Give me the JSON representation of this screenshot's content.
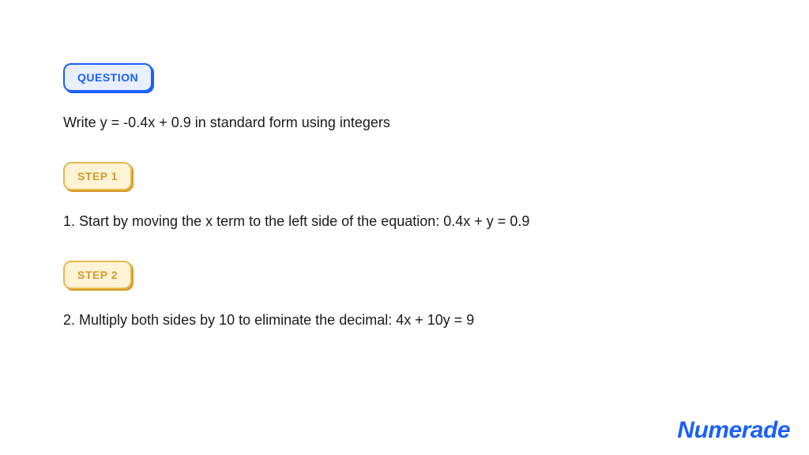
{
  "colors": {
    "accent_blue": "#1a5fff",
    "question_bg": "#e8f0ff",
    "step_bg": "#fff3d6",
    "step_border": "#e6b84f",
    "step_text": "#d4992b",
    "body_text": "#1a1a1a",
    "background": "#ffffff"
  },
  "typography": {
    "badge_fontsize": 14,
    "badge_weight": 700,
    "body_fontsize": 18,
    "logo_fontsize": 28
  },
  "sections": {
    "question": {
      "label": "QUESTION",
      "text": "Write y = -0.4x + 0.9 in standard form using integers"
    },
    "step1": {
      "label": "STEP 1",
      "text": "1. Start by moving the x term to the left side of the equation: 0.4x + y = 0.9"
    },
    "step2": {
      "label": "STEP 2",
      "text": "2. Multiply both sides by 10 to eliminate the decimal: 4x + 10y = 9"
    }
  },
  "logo_text": "Numerade"
}
